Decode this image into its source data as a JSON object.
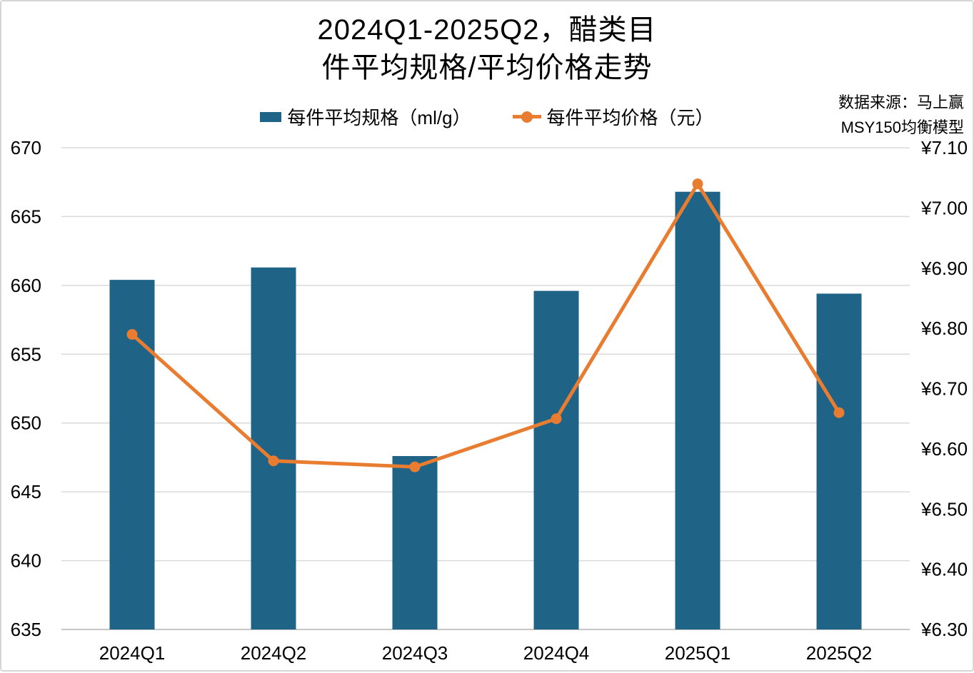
{
  "title": {
    "line1": "2024Q1-2025Q2，醋类目",
    "line2": "件平均规格/平均价格走势"
  },
  "legend": {
    "items": [
      {
        "label": "每件平均规格（ml/g）",
        "marker": "bar",
        "color": "#1F6386"
      },
      {
        "label": "每件平均价格（元）",
        "marker": "line-dot",
        "color": "#E87D31"
      }
    ]
  },
  "source": {
    "line1": "数据来源：马上赢",
    "line2": "MSY150均衡模型"
  },
  "chart_data": {
    "type": "bar+line",
    "categories": [
      "2024Q1",
      "2024Q2",
      "2024Q3",
      "2024Q4",
      "2025Q1",
      "2025Q2"
    ],
    "series": [
      {
        "name": "每件平均规格（ml/g）",
        "type": "bar",
        "axis": "left",
        "color": "#1F6386",
        "values": [
          660.4,
          661.3,
          647.6,
          659.6,
          666.8,
          659.4
        ]
      },
      {
        "name": "每件平均价格（元）",
        "type": "line",
        "axis": "right",
        "color": "#E87D31",
        "values": [
          6.79,
          6.58,
          6.57,
          6.65,
          7.04,
          6.66
        ]
      }
    ],
    "left_axis": {
      "min": 635,
      "max": 670,
      "step": 5,
      "tick_labels": [
        "670",
        "665",
        "660",
        "655",
        "650",
        "645",
        "640",
        "635"
      ]
    },
    "right_axis": {
      "min": 6.3,
      "max": 7.1,
      "step": 0.1,
      "prefix": "¥",
      "tick_labels": [
        "¥7.10",
        "¥7.00",
        "¥6.90",
        "¥6.80",
        "¥6.70",
        "¥6.60",
        "¥6.50",
        "¥6.40",
        "¥6.30"
      ]
    },
    "grid": "horizontal",
    "legend_position": "top-center",
    "colors": {
      "gridline": "#DADADA",
      "baseline": "#C6C6C6",
      "text": "#000000"
    }
  }
}
